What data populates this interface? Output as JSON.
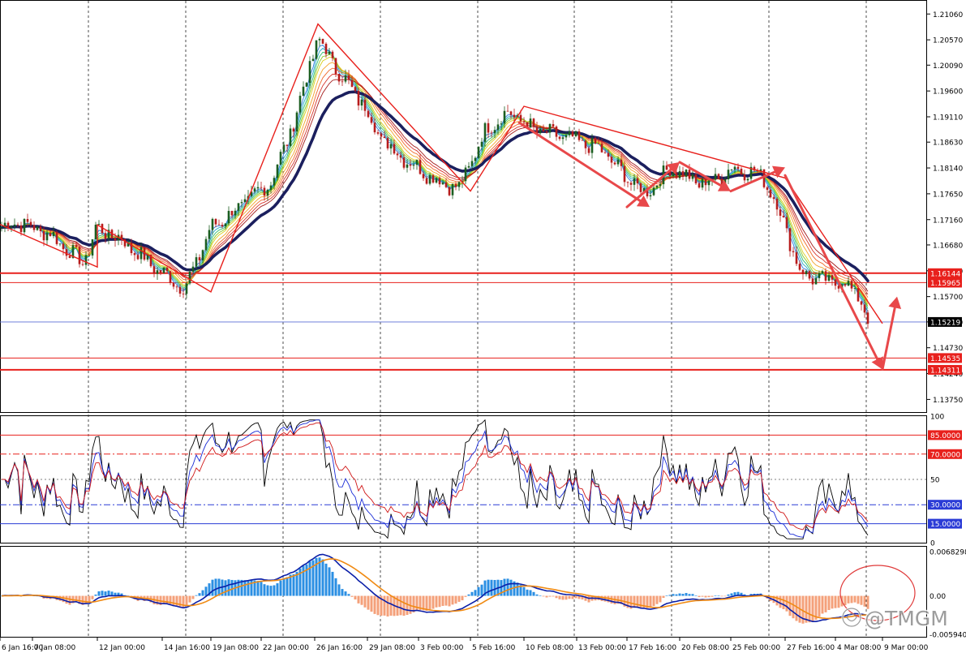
{
  "chart_data": {
    "type": "candlestick",
    "watermark": "@TMGM",
    "x_tick_labels": [
      "6 Jan 16:00",
      "7 Jan 08:00",
      "12 Jan 00:00",
      "14 Jan 16:00",
      "19 Jan 08:00",
      "22 Jan 00:00",
      "26 Jan 16:00",
      "29 Jan 08:00",
      "3 Feb 00:00",
      "5 Feb 16:00",
      "10 Feb 08:00",
      "13 Feb 00:00",
      "17 Feb 16:00",
      "20 Feb 08:00",
      "25 Feb 00:00",
      "27 Feb 16:00",
      "4 Mar 08:00",
      "9 Mar 00:00"
    ],
    "price_panel": {
      "ylim": [
        1.1351,
        1.2131
      ],
      "y_ticks": [
        "1.21060",
        "1.20570",
        "1.20090",
        "1.19600",
        "1.19110",
        "1.18630",
        "1.18140",
        "1.17650",
        "1.17160",
        "1.16680",
        "1.16190",
        "1.15700",
        "1.15220",
        "1.14730",
        "1.14240",
        "1.13750"
      ],
      "current_price": "1.15219",
      "horizontal_levels": [
        {
          "label": "1.16144",
          "value": 1.16144,
          "color": "#e8201c",
          "width": 2
        },
        {
          "label": "1.15965",
          "value": 1.15965,
          "color": "#e8201c",
          "width": 1
        },
        {
          "label": "1.14535",
          "value": 1.14535,
          "color": "#e8201c",
          "width": 1
        },
        {
          "label": "1.14311",
          "value": 1.14311,
          "color": "#e8201c",
          "width": 2
        }
      ],
      "zigzag": [
        {
          "date": "6 Jan 16:00",
          "price": 1.1707
        },
        {
          "date": "12 Jan 00:00",
          "price": 1.1626
        },
        {
          "date": "12 Jan 00:00",
          "price": 1.1706
        },
        {
          "date": "19 Jan 08:00",
          "price": 1.1579
        },
        {
          "date": "28 Jan 00:00",
          "price": 1.2087
        },
        {
          "date": "5 Feb 16:00",
          "price": 1.177
        },
        {
          "date": "10 Feb 08:00",
          "price": 1.1931
        },
        {
          "date": "27 Feb 16:00",
          "price": 1.1795
        },
        {
          "date": "9 Mar 00:00",
          "price": 1.1519
        }
      ],
      "forecast_arrows": [
        {
          "from": {
            "date": "10 Feb 08:00",
            "price": 1.19
          },
          "to": {
            "date": "17 Feb 16:00",
            "price": 1.174
          }
        },
        {
          "from": {
            "date": "17 Feb 16:00",
            "price": 1.174
          },
          "to": {
            "date": "20 Feb 08:00",
            "price": 1.1825
          }
        },
        {
          "from": {
            "date": "20 Feb 08:00",
            "price": 1.1825
          },
          "to": {
            "date": "25 Feb 00:00",
            "price": 1.177
          }
        },
        {
          "from": {
            "date": "25 Feb 00:00",
            "price": 1.177
          },
          "to": {
            "date": "27 Feb 16:00",
            "price": 1.1815
          }
        },
        {
          "from": {
            "date": "27 Feb 16:00",
            "price": 1.18
          },
          "to": {
            "date": "9 Mar 00:00",
            "price": 1.1432
          }
        },
        {
          "from": {
            "date": "9 Mar 00:00",
            "price": 1.1432
          },
          "to": {
            "date": "9 Mar 08:00",
            "price": 1.157
          }
        }
      ],
      "ma_main_color": "#1b1f5e",
      "ribbon_colors": [
        "#2f7de1",
        "#27a9c9",
        "#2fbf71",
        "#8ac926",
        "#d9cf1f",
        "#f3a32c",
        "#ef6b2d",
        "#d8362e",
        "#a31b1b"
      ],
      "candle_up_color": "#1b5e20",
      "candle_down_color": "#b71c1c"
    },
    "rsi_panel": {
      "ylim": [
        0,
        100
      ],
      "y_ticks": [
        "100",
        "50",
        "0"
      ],
      "levels": [
        {
          "label": "85.0000",
          "value": 85,
          "color": "#e8201c",
          "style": "solid"
        },
        {
          "label": "70.0000",
          "value": 70,
          "color": "#e8201c",
          "style": "dashdot"
        },
        {
          "label": "30.0000",
          "value": 30,
          "color": "#2a3bd6",
          "style": "dashdot"
        },
        {
          "label": "15.0000",
          "value": 15,
          "color": "#2a3bd6",
          "style": "solid"
        }
      ],
      "series_colors": {
        "fast": "#000000",
        "mid": "#1a2cd6",
        "slow": "#d01818"
      }
    },
    "macd_panel": {
      "ylim": [
        -0.00594,
        0.006829
      ],
      "y_ticks": [
        "0.0068298",
        "0.00",
        "-0.005940"
      ],
      "hist_pos_color": "#2b8fe3",
      "hist_neg_color": "#f4a07a",
      "line_colors": {
        "macd": "#0b1fa8",
        "signal": "#f08a12"
      },
      "annotation": "ellipse"
    }
  }
}
